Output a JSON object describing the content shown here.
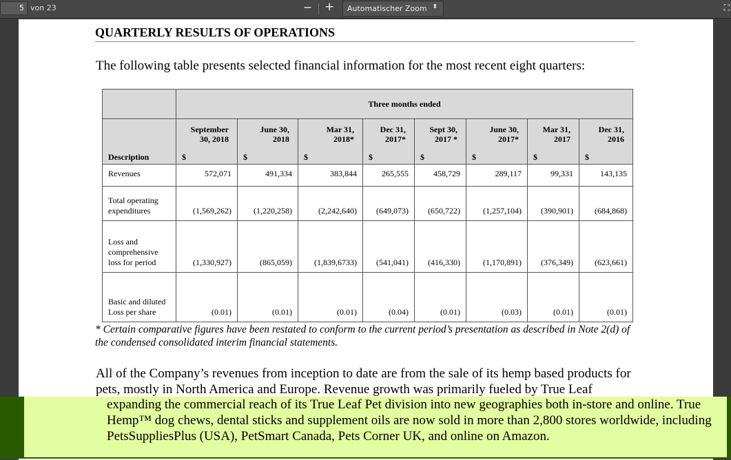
{
  "toolbar": {
    "page": "5",
    "page_count": "von 23",
    "zoom_out": "−",
    "zoom_in": "+",
    "zoom": "Automatischer Zoom",
    "zoom_arrow": "⬍",
    "fullscreen": "⛶"
  },
  "doc": {
    "heading": "QUARTERLY RESULTS OF OPERATIONS",
    "intro": "The following table presents selected financial information for the most recent eight quarters:",
    "table": {
      "group_header": "Three months ended",
      "desc_header": "Description",
      "columns": [
        {
          "l1": "September",
          "l2": "30, 2018",
          "cur": "$"
        },
        {
          "l1": "June 30,",
          "l2": "2018",
          "cur": "$"
        },
        {
          "l1": "Mar 31,",
          "l2": "2018*",
          "cur": "$"
        },
        {
          "l1": "Dec 31,",
          "l2": "2017*",
          "cur": "$"
        },
        {
          "l1": "Sept 30,",
          "l2": "2017 *",
          "cur": "$"
        },
        {
          "l1": "June 30,",
          "l2": "2017*",
          "cur": "$"
        },
        {
          "l1": "Mar 31,",
          "l2": "2017",
          "cur": "$"
        },
        {
          "l1": "Dec 31,",
          "l2": "2016",
          "cur": "$"
        }
      ],
      "rows": [
        {
          "label": "Revenues",
          "values": [
            "572,071",
            "491,334",
            "383,844",
            "265,555",
            "458,729",
            "289,117",
            "99,331",
            "143,135"
          ]
        },
        {
          "label": "Total operating expenditures",
          "values": [
            "(1,569,262)",
            "(1,220,258)",
            "(2,242,640)",
            "(649,073)",
            "(650,722)",
            "(1,257,104)",
            "(390,901)",
            "(684,868)"
          ]
        },
        {
          "label": "Loss and comprehensive loss for period",
          "values": [
            "(1,330,927)",
            "(865,059)",
            "(1,839,6733)",
            "(541,041)",
            "(416,330)",
            "(1,170,891)",
            "(376,349)",
            "(623,661)"
          ]
        },
        {
          "label": "Basic and diluted Loss per share",
          "values": [
            "(0.01)",
            "(0.01)",
            "(0.01)",
            "(0.04)",
            "(0.01)",
            "(0.03)",
            "(0.01)",
            "(0.01)"
          ]
        }
      ]
    },
    "note": "* Certain comparative figures have been restated to conform to the current period’s presentation as described in Note 2(d) of the condensed consolidated interim financial statements.",
    "para": "All of the Company’s revenues from inception to date are from the sale of its hemp based products for pets, mostly in North America and Europe.  Revenue growth was primarily fueled by True Leaf",
    "highlight": "expanding the commercial reach of its True Leaf Pet division into new geographies both in-store and online. True Hemp™ dog chews, dental sticks and supplement oils are now sold in more than 2,800 stores worldwide, including PetsSuppliesPlus (USA), PetSmart Canada, Pets Corner UK, and online on Amazon."
  }
}
